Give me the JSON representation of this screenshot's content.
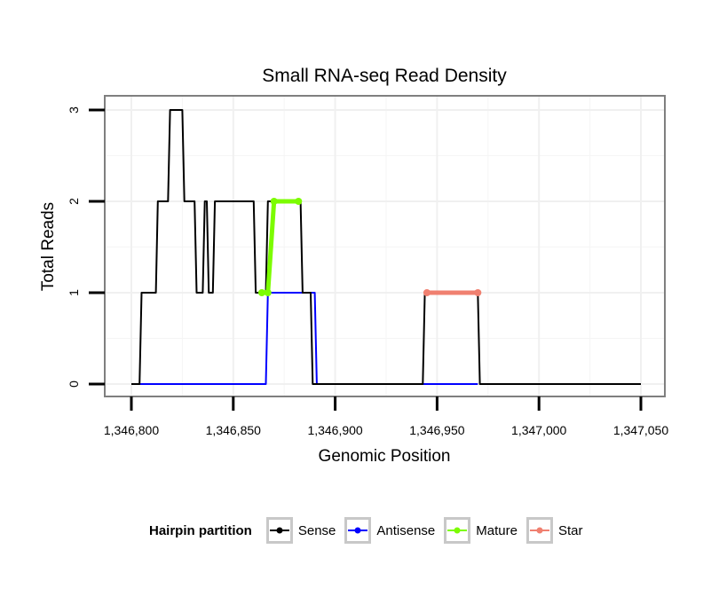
{
  "chart_data": {
    "type": "line",
    "title": "Small RNA-seq Read Density",
    "xlabel": "Genomic Position",
    "ylabel": "Total Reads",
    "xlim": [
      1346800,
      1347050
    ],
    "ylim": [
      0,
      3
    ],
    "x_ticks": [
      1346800,
      1346850,
      1346900,
      1346950,
      1347000,
      1347050
    ],
    "x_tick_labels": [
      "1,346,800",
      "1,346,850",
      "1,346,900",
      "1,346,950",
      "1,347,000",
      "1,347,050"
    ],
    "y_ticks": [
      0,
      1,
      2,
      3
    ],
    "y_tick_labels": [
      "0",
      "1",
      "2",
      "3"
    ],
    "grid": true,
    "legend_position": "bottom",
    "series": [
      {
        "name": "Sense",
        "color": "#000000",
        "x": [
          1346800,
          1346804,
          1346805,
          1346812,
          1346813,
          1346818,
          1346819,
          1346825,
          1346826,
          1346831,
          1346832,
          1346835,
          1346836,
          1346837,
          1346838,
          1346840,
          1346841,
          1346860,
          1346861,
          1346866,
          1346867,
          1346883,
          1346884,
          1346888,
          1346889,
          1346943,
          1346944,
          1346970,
          1346971,
          1347050
        ],
        "y": [
          0,
          0,
          1,
          1,
          2,
          2,
          3,
          3,
          2,
          2,
          1,
          1,
          2,
          2,
          1,
          1,
          2,
          2,
          1,
          1,
          2,
          2,
          1,
          1,
          0,
          0,
          1,
          1,
          0,
          0
        ]
      },
      {
        "name": "Antisense",
        "color": "#0000ff",
        "x": [
          1346804,
          1346866,
          1346867,
          1346890,
          1346891,
          1346944,
          1346945,
          1346970
        ],
        "y": [
          0,
          0,
          1,
          1,
          0,
          0,
          0,
          0
        ]
      },
      {
        "name": "Mature",
        "color": "#7cfc00",
        "x": [
          1346864,
          1346867,
          1346870,
          1346882
        ],
        "y": [
          1,
          1,
          2,
          2
        ]
      },
      {
        "name": "Star",
        "color": "#f08070",
        "x": [
          1346945,
          1346970
        ],
        "y": [
          1,
          1
        ]
      }
    ]
  },
  "legend": {
    "title": "Hairpin partition",
    "items": [
      {
        "label": "Sense",
        "color": "#000000"
      },
      {
        "label": "Antisense",
        "color": "#0000ff"
      },
      {
        "label": "Mature",
        "color": "#7cfc00"
      },
      {
        "label": "Star",
        "color": "#f08070"
      }
    ]
  }
}
